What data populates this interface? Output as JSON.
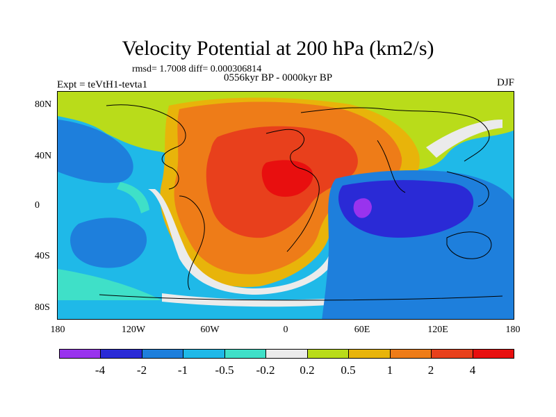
{
  "title": "Velocity Potential at 200 hPa (km2/s)",
  "stats_line": "rmsd= 1.7008 diff= 0.000306814",
  "period": "0556kyr BP - 0000kyr BP",
  "experiment": "Expt = teVtH1-tevta1",
  "season": "DJF",
  "lat_labels": [
    "80N",
    "40N",
    "0",
    "40S",
    "80S"
  ],
  "lon_labels": [
    "180",
    "120W",
    "60W",
    "0",
    "60E",
    "120E",
    "180"
  ],
  "colorbar": {
    "labels": [
      "-4",
      "-2",
      "-1",
      "-0.5",
      "-0.2",
      "0.2",
      "0.5",
      "1",
      "2",
      "4"
    ],
    "colors": [
      "#9933ee",
      "#2a2ad6",
      "#1e7fdc",
      "#1fb9e8",
      "#3fe0c8",
      "#ebebeb",
      "#b9dc1a",
      "#e8b40a",
      "#ee7c18",
      "#e8401c",
      "#e80f0f"
    ]
  },
  "field_colors": {
    "base": "#1fb9e8",
    "lvl_m4": "#9933ee",
    "lvl_m2": "#2a2ad6",
    "lvl_m1": "#1e7fdc",
    "lvl_m05": "#1fb9e8",
    "lvl_m02": "#3fe0c8",
    "lvl_0": "#ebebeb",
    "lvl_02": "#b9dc1a",
    "lvl_05": "#e8b40a",
    "lvl_1": "#ee7c18",
    "lvl_2": "#e8401c",
    "lvl_4": "#e80f0f"
  }
}
